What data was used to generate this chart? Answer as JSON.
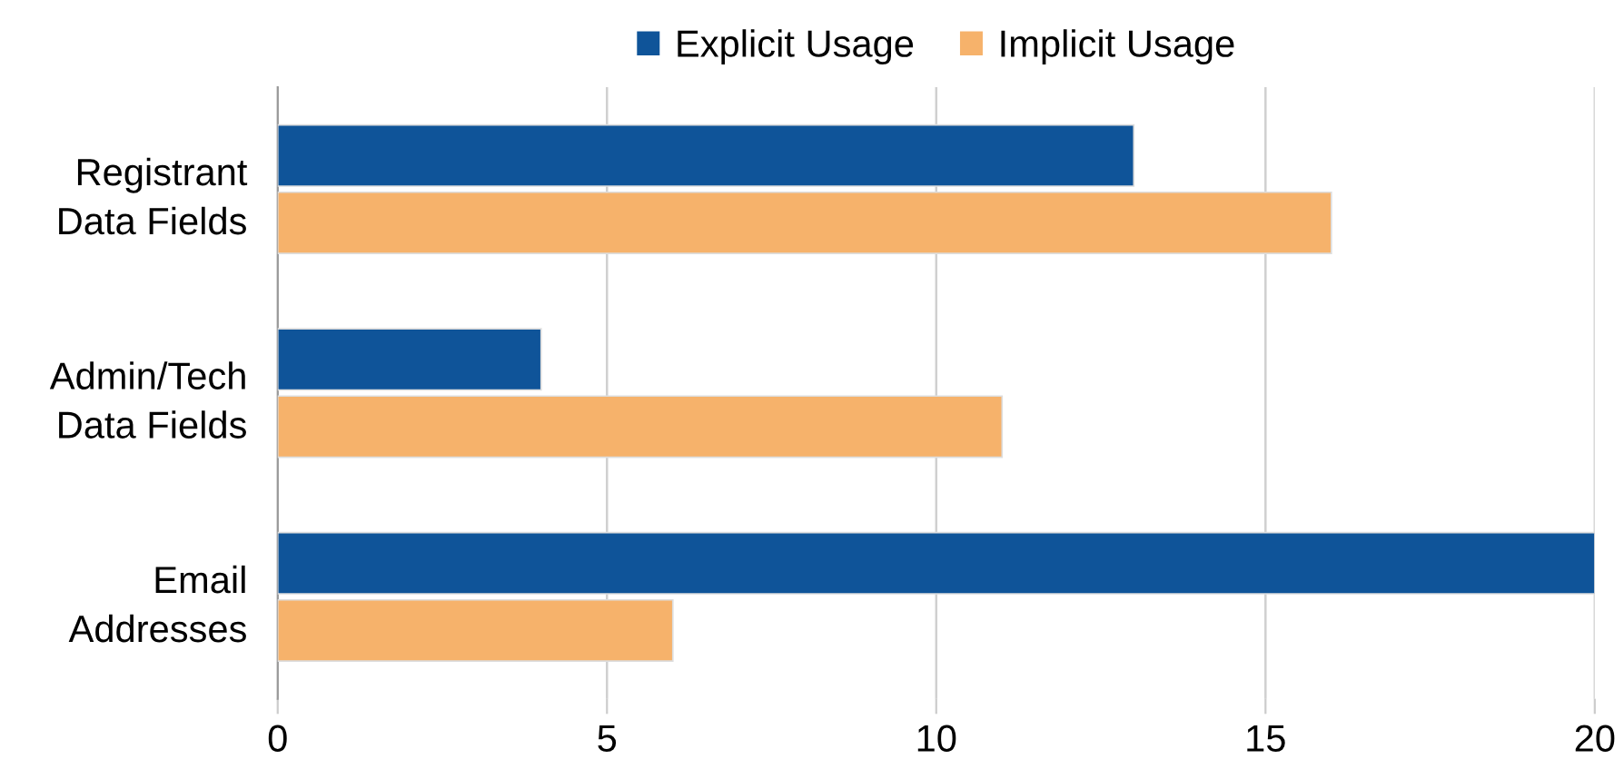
{
  "chart_data": {
    "type": "bar",
    "orientation": "horizontal",
    "categories": [
      "Registrant\nData Fields",
      "Admin/Tech\nData Fields",
      "Email\nAddresses"
    ],
    "series": [
      {
        "name": "Explicit Usage",
        "color": "#0f5499",
        "values": [
          13,
          4,
          20
        ]
      },
      {
        "name": "Implicit Usage",
        "color": "#f6b26b",
        "values": [
          16,
          11,
          6
        ]
      }
    ],
    "xlim": [
      0,
      20
    ],
    "xticks": [
      0,
      5,
      10,
      15,
      20
    ],
    "grid": "x",
    "legend": "top"
  }
}
